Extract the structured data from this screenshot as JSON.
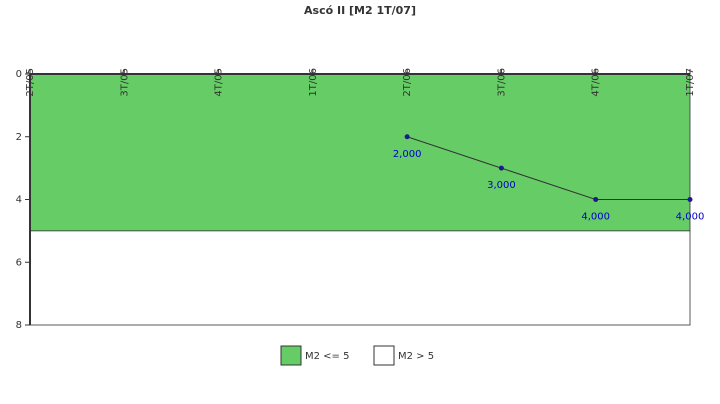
{
  "chart_data": {
    "type": "line",
    "title": "Ascó II [M2 1T/07]",
    "categories": [
      "2T/05",
      "3T/05",
      "4T/05",
      "1T/06",
      "2T/06",
      "3T/06",
      "4T/06",
      "1T/07"
    ],
    "series": [
      {
        "color": "#333333",
        "marker_color": "#1a1a8c",
        "label_color": "#0000cc",
        "values": [
          null,
          null,
          null,
          null,
          2,
          3,
          4,
          4
        ],
        "value_labels": [
          null,
          null,
          null,
          null,
          "2,000",
          "3,000",
          "4,000",
          "4,000"
        ]
      }
    ],
    "bands": [
      {
        "name": "M2 <= 5",
        "color": "#66cc66",
        "from": 0,
        "to": 5
      },
      {
        "name": "M2 > 5",
        "color": "#ffffff",
        "from": 5,
        "to": 8
      }
    ],
    "ylim": [
      0,
      8
    ],
    "yticks": [
      0,
      2,
      4,
      6,
      8
    ],
    "y_inverted": true,
    "legend": "bottom"
  }
}
